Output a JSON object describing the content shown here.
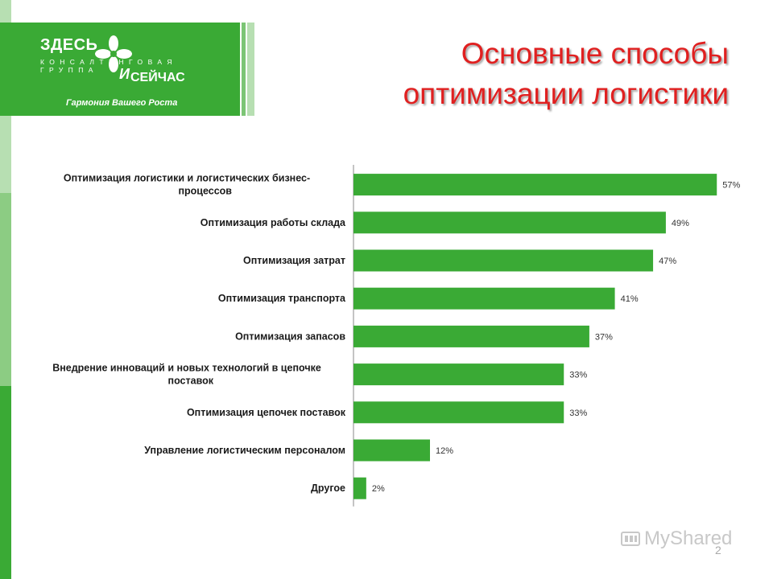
{
  "logo": {
    "brand_top": "ЗДЕСЬ",
    "brand_sub": "КОНСАЛТИНГОВАЯ ГРУППА",
    "brand_and": "И",
    "brand_bottom": "СЕЙЧАС",
    "tagline": "Гармония Вашего Роста",
    "color": "#3aaa35"
  },
  "title": {
    "line1": "Основные способы",
    "line2": "оптимизации логистики",
    "color": "#e02020"
  },
  "chart_data": {
    "type": "bar",
    "orientation": "horizontal",
    "categories": [
      [
        "Оптимизация логистики и логистических бизнес-",
        "процессов"
      ],
      [
        "Оптимизация работы склада"
      ],
      [
        "Оптимизация затрат"
      ],
      [
        "Оптимизация транспорта"
      ],
      [
        "Оптимизация запасов"
      ],
      [
        "Внедрение инноваций и новых технологий в цепочке",
        "поставок"
      ],
      [
        "Оптимизация цепочек поставок"
      ],
      [
        "Управление логистическим персоналом"
      ],
      [
        "Другое"
      ]
    ],
    "values": [
      57,
      49,
      47,
      41,
      37,
      33,
      33,
      12,
      2
    ],
    "data_labels": [
      "57%",
      "49%",
      "47%",
      "41%",
      "37%",
      "33%",
      "33%",
      "12%",
      "2%"
    ],
    "xlim": [
      0,
      60
    ],
    "bar_color": "#3aaa35",
    "grid": false,
    "legend": "none"
  },
  "page_number": "2",
  "watermark": "MyShared"
}
